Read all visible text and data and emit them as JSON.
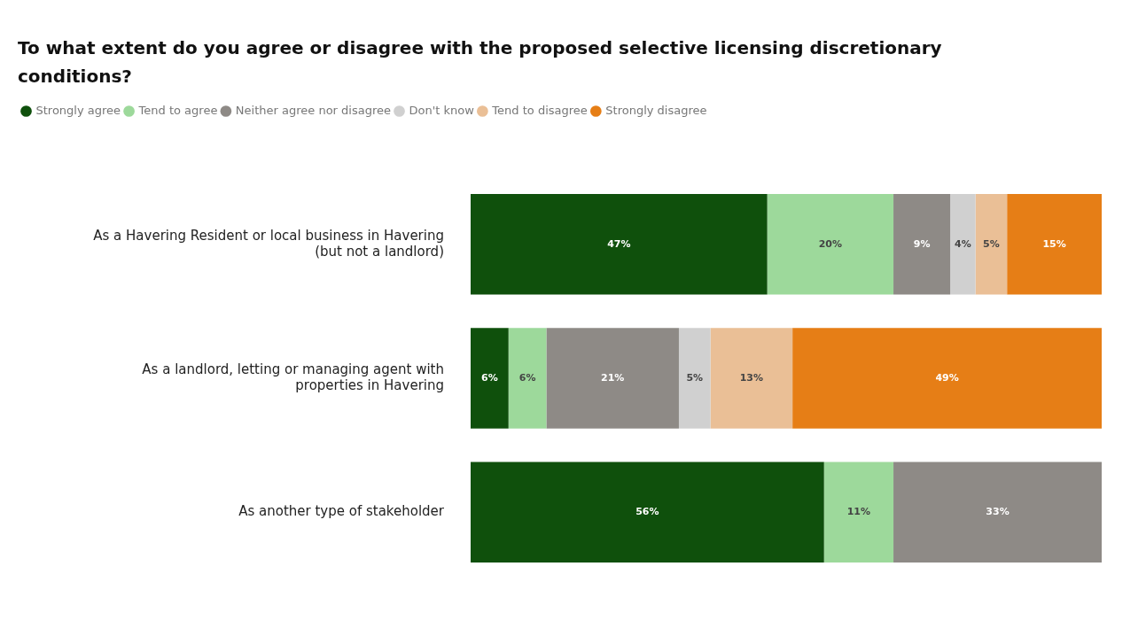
{
  "chart_data": {
    "type": "bar",
    "orientation": "horizontal",
    "stacked": true,
    "title": "To what extent do you agree or disagree with the proposed selective licensing discretionary conditions?",
    "categories": [
      "As a Havering Resident or local business in Havering (but not a landlord)",
      "As a landlord, letting or managing agent with properties in Havering",
      "As another type of stakeholder"
    ],
    "series": [
      {
        "name": "Strongly agree",
        "color": "#0f500c",
        "values": [
          47,
          6,
          56
        ],
        "value_labels": [
          "47%",
          "6%",
          "56%"
        ]
      },
      {
        "name": "Tend to agree",
        "color": "#9dd99b",
        "values": [
          20,
          6,
          11
        ],
        "value_labels": [
          "20%",
          "6%",
          "11%"
        ]
      },
      {
        "name": "Neither agree nor disagree",
        "color": "#8e8a86",
        "values": [
          9,
          21,
          33
        ],
        "value_labels": [
          "9%",
          "21%",
          "33%"
        ]
      },
      {
        "name": "Don't know",
        "color": "#d0d0d0",
        "values": [
          4,
          5,
          null
        ],
        "value_labels": [
          "4%",
          "5%",
          null
        ]
      },
      {
        "name": "Tend to disagree",
        "color": "#eabf96",
        "values": [
          5,
          13,
          null
        ],
        "value_labels": [
          "5%",
          "13%",
          null
        ]
      },
      {
        "name": "Strongly disagree",
        "color": "#e67e16",
        "values": [
          15,
          49,
          null
        ],
        "value_labels": [
          "15%",
          "49%",
          null
        ]
      }
    ],
    "xlim": [
      0,
      100
    ],
    "tick_labels": "y",
    "grid": false,
    "legend": "top left",
    "marker": "circle"
  }
}
